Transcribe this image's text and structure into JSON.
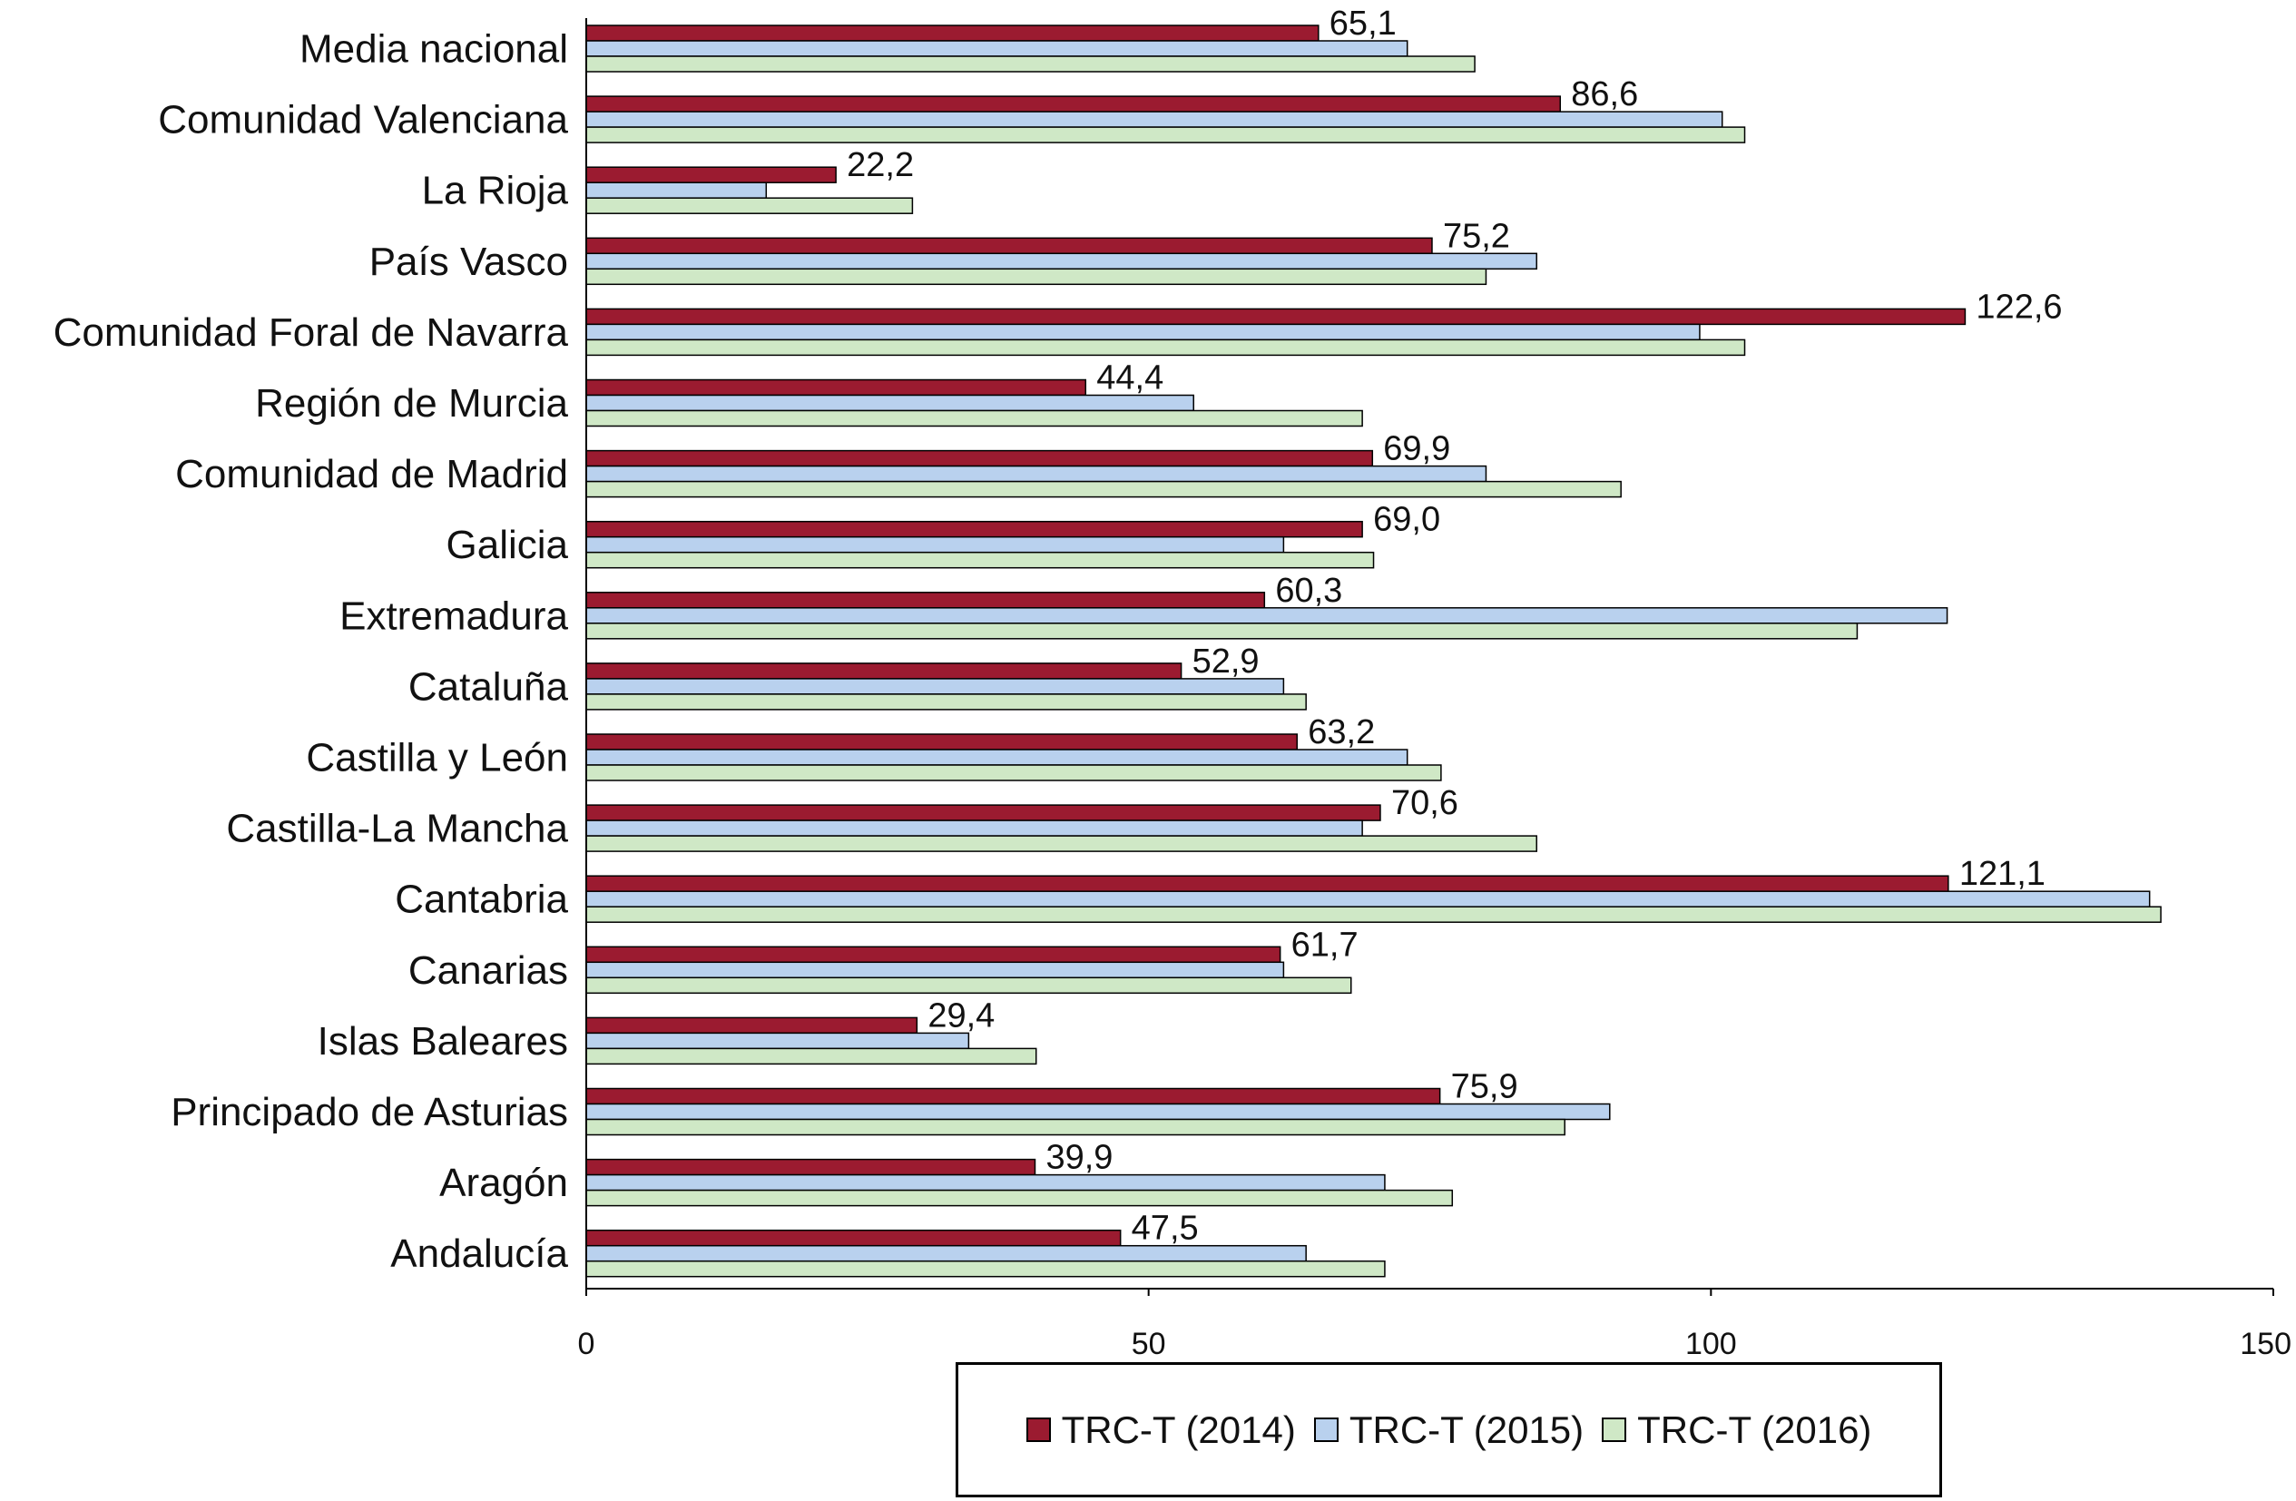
{
  "chart_data": {
    "type": "bar",
    "orientation": "horizontal",
    "categories": [
      "Media nacional",
      "Comunidad Valenciana",
      "La Rioja",
      "País Vasco",
      "Comunidad Foral de Navarra",
      "Región de Murcia",
      "Comunidad de Madrid",
      "Galicia",
      "Extremadura",
      "Cataluña",
      "Castilla y León",
      "Castilla-La Mancha",
      "Cantabria",
      "Canarias",
      "Islas Baleares",
      "Principado de Asturias",
      "Aragón",
      "Andalucía"
    ],
    "series": [
      {
        "name": "TRC-T (2014)",
        "color": "#9b1b30",
        "values": [
          65.1,
          86.6,
          22.2,
          75.2,
          122.6,
          44.4,
          69.9,
          69.0,
          60.3,
          52.9,
          63.2,
          70.6,
          121.1,
          61.7,
          29.4,
          75.9,
          39.9,
          47.5
        ]
      },
      {
        "name": "TRC-T (2015)",
        "color": "#b9d1ee",
        "values": [
          73.0,
          101.0,
          16.0,
          84.5,
          99.0,
          54.0,
          80.0,
          62.0,
          121.0,
          62.0,
          73.0,
          69.0,
          139.0,
          62.0,
          34.0,
          91.0,
          71.0,
          64.0
        ]
      },
      {
        "name": "TRC-T (2016)",
        "color": "#cfe8c6",
        "values": [
          79.0,
          103.0,
          29.0,
          80.0,
          103.0,
          69.0,
          92.0,
          70.0,
          113.0,
          64.0,
          76.0,
          84.5,
          140.0,
          68.0,
          40.0,
          87.0,
          77.0,
          71.0
        ]
      }
    ],
    "data_labels": [
      "65,1",
      "86,6",
      "22,2",
      "75,2",
      "122,6",
      "44,4",
      "69,9",
      "69,0",
      "60,3",
      "52,9",
      "63,2",
      "70,6",
      "121,1",
      "61,7",
      "29,4",
      "75,9",
      "39,9",
      "47,5"
    ],
    "xlim": [
      0,
      150
    ],
    "xticks": [
      0,
      50,
      100,
      150
    ],
    "xtick_labels": [
      "0",
      "50",
      "100",
      "150"
    ],
    "title": "",
    "xlabel": "",
    "ylabel": "",
    "grid": false,
    "legend_position": "bottom"
  }
}
